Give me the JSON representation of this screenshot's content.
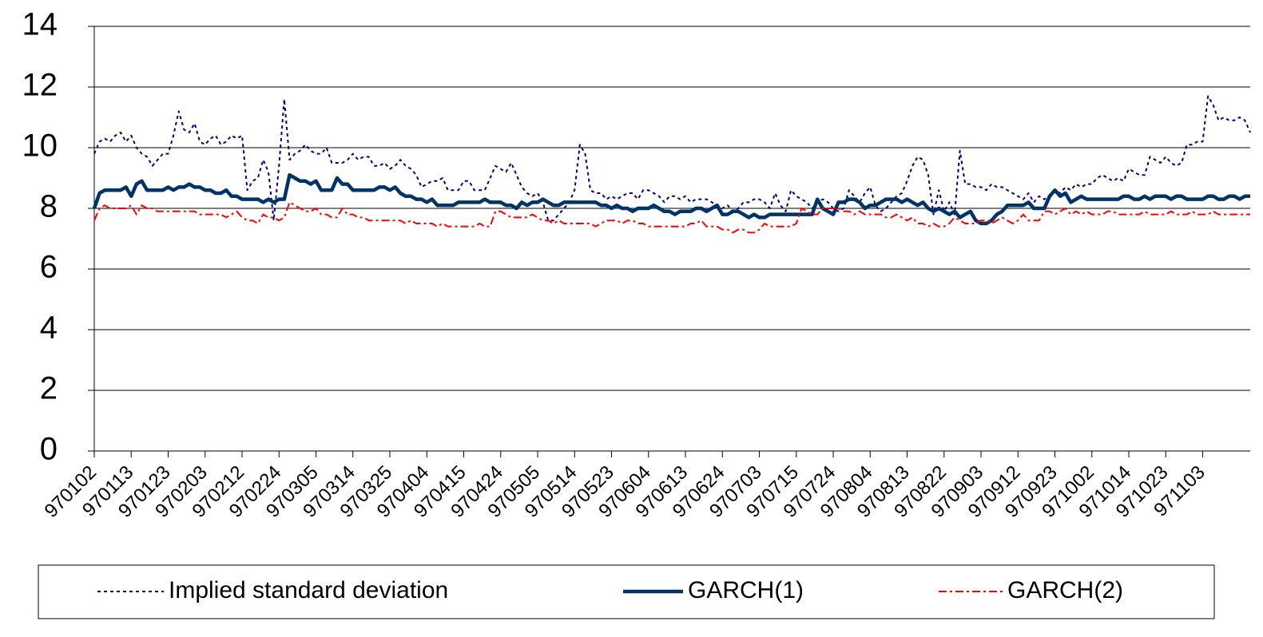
{
  "chart_data": {
    "type": "line",
    "categories": [
      "970102",
      null,
      null,
      null,
      null,
      null,
      null,
      "970113",
      null,
      null,
      null,
      null,
      null,
      null,
      "970123",
      null,
      null,
      null,
      null,
      null,
      null,
      "970203",
      null,
      null,
      null,
      null,
      null,
      null,
      "970212",
      null,
      null,
      null,
      null,
      null,
      null,
      "970224",
      null,
      null,
      null,
      null,
      null,
      null,
      "970305",
      null,
      null,
      null,
      null,
      null,
      null,
      "970314",
      null,
      null,
      null,
      null,
      null,
      null,
      "970325",
      null,
      null,
      null,
      null,
      null,
      null,
      "970404",
      null,
      null,
      null,
      null,
      null,
      null,
      "970415",
      null,
      null,
      null,
      null,
      null,
      null,
      "970424",
      null,
      null,
      null,
      null,
      null,
      null,
      "970505",
      null,
      null,
      null,
      null,
      null,
      null,
      "970514",
      null,
      null,
      null,
      null,
      null,
      null,
      "970523",
      null,
      null,
      null,
      null,
      null,
      null,
      "970604",
      null,
      null,
      null,
      null,
      null,
      null,
      "970613",
      null,
      null,
      null,
      null,
      null,
      null,
      "970624",
      null,
      null,
      null,
      null,
      null,
      null,
      "970703",
      null,
      null,
      null,
      null,
      null,
      null,
      "970715",
      null,
      null,
      null,
      null,
      null,
      null,
      "970724",
      null,
      null,
      null,
      null,
      null,
      null,
      "970804",
      null,
      null,
      null,
      null,
      null,
      null,
      "970813",
      null,
      null,
      null,
      null,
      null,
      null,
      "970822",
      null,
      null,
      null,
      null,
      null,
      null,
      "970903",
      null,
      null,
      null,
      null,
      null,
      null,
      "970912",
      null,
      null,
      null,
      null,
      null,
      null,
      "970923",
      null,
      null,
      null,
      null,
      null,
      null,
      "971002",
      null,
      null,
      null,
      null,
      null,
      null,
      "971014",
      null,
      null,
      null,
      null,
      null,
      null,
      "971023",
      null,
      null,
      null,
      null,
      null,
      null,
      "971103",
      null,
      null,
      null,
      null,
      null,
      null,
      null,
      null,
      null
    ],
    "series": [
      {
        "name": "Implied standard deviation",
        "color": "#000080",
        "dash": "dotted",
        "values": [
          9.8,
          10.2,
          10.3,
          10.2,
          10.4,
          10.5,
          10.2,
          10.4,
          10.0,
          9.8,
          9.7,
          9.4,
          9.6,
          9.8,
          9.8,
          10.4,
          11.2,
          10.6,
          10.5,
          10.8,
          10.2,
          10.1,
          10.3,
          10.4,
          10.1,
          10.2,
          10.4,
          10.3,
          10.4,
          8.6,
          8.9,
          9.0,
          9.6,
          9.2,
          7.6,
          9.4,
          11.6,
          9.6,
          9.8,
          9.9,
          10.1,
          9.9,
          9.8,
          9.8,
          10.0,
          9.5,
          9.5,
          9.5,
          9.6,
          9.8,
          9.6,
          9.7,
          9.7,
          9.4,
          9.4,
          9.5,
          9.3,
          9.4,
          9.6,
          9.4,
          9.3,
          9.1,
          8.7,
          8.8,
          8.9,
          8.9,
          9.0,
          8.6,
          8.6,
          8.6,
          8.9,
          8.9,
          8.6,
          8.6,
          8.6,
          9.0,
          9.4,
          9.3,
          9.2,
          9.5,
          9.1,
          8.7,
          8.5,
          8.4,
          8.5,
          8.2,
          7.6,
          7.6,
          7.8,
          8.0,
          8.2,
          8.6,
          10.1,
          9.8,
          8.6,
          8.5,
          8.5,
          8.3,
          8.4,
          8.3,
          8.4,
          8.5,
          8.5,
          8.3,
          8.6,
          8.6,
          8.5,
          8.4,
          8.2,
          8.4,
          8.4,
          8.3,
          8.4,
          8.2,
          8.3,
          8.3,
          8.3,
          8.2,
          8.1,
          8.0,
          8.1,
          7.9,
          8.0,
          8.2,
          8.2,
          8.3,
          8.3,
          8.2,
          8.0,
          8.5,
          8.1,
          7.9,
          8.6,
          8.4,
          8.3,
          8.2,
          8.0,
          8.2,
          8.3,
          8.2,
          8.0,
          7.9,
          8.0,
          8.6,
          8.4,
          8.2,
          8.5,
          8.7,
          8.1,
          7.9,
          8.0,
          8.2,
          8.4,
          8.5,
          8.9,
          9.4,
          9.7,
          9.6,
          9.1,
          7.8,
          8.6,
          7.9,
          8.2,
          7.8,
          9.9,
          8.8,
          8.8,
          8.7,
          8.7,
          8.6,
          8.8,
          8.7,
          8.7,
          8.6,
          8.5,
          8.4,
          8.3,
          8.5,
          8.2,
          8.4,
          8.3,
          8.4,
          8.6,
          8.5,
          8.7,
          8.6,
          8.8,
          8.7,
          8.8,
          8.8,
          9.0,
          9.1,
          9.0,
          8.9,
          9.0,
          8.9,
          9.3,
          9.2,
          9.1,
          9.1,
          9.7,
          9.6,
          9.5,
          9.7,
          9.5,
          9.4,
          9.5,
          10.1,
          10.1,
          10.2,
          10.2,
          11.7,
          11.4,
          10.9,
          11.0,
          10.9,
          10.9,
          11.0,
          10.9,
          10.5
        ]
      },
      {
        "name": "GARCH(1)",
        "color": "#003366",
        "dash": "solid",
        "values": [
          8.0,
          8.5,
          8.6,
          8.6,
          8.6,
          8.6,
          8.7,
          8.4,
          8.8,
          8.9,
          8.6,
          8.6,
          8.6,
          8.6,
          8.7,
          8.6,
          8.7,
          8.7,
          8.8,
          8.7,
          8.7,
          8.6,
          8.6,
          8.5,
          8.5,
          8.6,
          8.4,
          8.4,
          8.3,
          8.3,
          8.3,
          8.3,
          8.2,
          8.3,
          8.2,
          8.3,
          8.3,
          9.1,
          9.0,
          8.9,
          8.9,
          8.8,
          8.9,
          8.6,
          8.6,
          8.6,
          9.0,
          8.8,
          8.8,
          8.6,
          8.6,
          8.6,
          8.6,
          8.6,
          8.7,
          8.7,
          8.6,
          8.7,
          8.5,
          8.4,
          8.4,
          8.3,
          8.3,
          8.2,
          8.3,
          8.1,
          8.1,
          8.1,
          8.1,
          8.2,
          8.2,
          8.2,
          8.2,
          8.2,
          8.3,
          8.2,
          8.2,
          8.2,
          8.1,
          8.1,
          8.0,
          8.2,
          8.1,
          8.2,
          8.2,
          8.3,
          8.2,
          8.1,
          8.1,
          8.2,
          8.2,
          8.2,
          8.2,
          8.2,
          8.2,
          8.2,
          8.1,
          8.1,
          8.0,
          8.1,
          8.0,
          8.0,
          7.9,
          8.0,
          8.0,
          8.0,
          8.1,
          8.0,
          7.9,
          7.9,
          7.8,
          7.9,
          7.9,
          7.9,
          8.0,
          8.0,
          7.9,
          8.0,
          8.1,
          7.8,
          7.8,
          7.9,
          7.9,
          7.8,
          7.7,
          7.8,
          7.7,
          7.7,
          7.8,
          7.8,
          7.8,
          7.8,
          7.8,
          7.8,
          7.8,
          7.8,
          7.8,
          8.3,
          8.0,
          7.9,
          7.8,
          8.2,
          8.2,
          8.3,
          8.3,
          8.2,
          8.0,
          8.1,
          8.1,
          8.2,
          8.3,
          8.3,
          8.3,
          8.2,
          8.3,
          8.2,
          8.1,
          8.2,
          8.0,
          7.9,
          8.0,
          7.9,
          7.8,
          7.9,
          7.7,
          7.8,
          7.9,
          7.6,
          7.5,
          7.5,
          7.6,
          7.8,
          7.9,
          8.1,
          8.1,
          8.1,
          8.1,
          8.2,
          8.0,
          8.0,
          8.0,
          8.4,
          8.6,
          8.4,
          8.5,
          8.2,
          8.3,
          8.4,
          8.3,
          8.3,
          8.3,
          8.3,
          8.3,
          8.3,
          8.3,
          8.4,
          8.4,
          8.3,
          8.3,
          8.4,
          8.3,
          8.4,
          8.4,
          8.4,
          8.3,
          8.4,
          8.4,
          8.3,
          8.3,
          8.3,
          8.3,
          8.4,
          8.4,
          8.3,
          8.3,
          8.4,
          8.4,
          8.3,
          8.4,
          8.4
        ]
      },
      {
        "name": "GARCH(2)",
        "color": "#ff0000",
        "dash": "dashdot",
        "values": [
          7.6,
          8.0,
          8.1,
          8.0,
          8.0,
          8.0,
          8.0,
          8.1,
          7.8,
          8.1,
          8.0,
          8.0,
          7.9,
          7.9,
          7.9,
          7.9,
          7.9,
          7.9,
          7.9,
          7.9,
          7.8,
          7.8,
          7.8,
          7.8,
          7.8,
          7.7,
          7.8,
          7.9,
          7.7,
          7.6,
          7.6,
          7.5,
          7.8,
          7.7,
          7.7,
          7.6,
          7.7,
          8.2,
          8.1,
          8.0,
          7.9,
          7.9,
          8.0,
          7.8,
          7.8,
          7.7,
          7.7,
          8.0,
          7.8,
          7.8,
          7.7,
          7.7,
          7.6,
          7.6,
          7.6,
          7.6,
          7.6,
          7.6,
          7.6,
          7.5,
          7.6,
          7.5,
          7.5,
          7.5,
          7.5,
          7.4,
          7.5,
          7.4,
          7.4,
          7.4,
          7.4,
          7.4,
          7.4,
          7.5,
          7.4,
          7.4,
          7.9,
          7.9,
          7.8,
          7.7,
          7.7,
          7.7,
          7.7,
          7.8,
          7.7,
          7.6,
          7.6,
          7.5,
          7.6,
          7.5,
          7.5,
          7.5,
          7.5,
          7.5,
          7.5,
          7.4,
          7.5,
          7.6,
          7.6,
          7.6,
          7.5,
          7.6,
          7.6,
          7.5,
          7.5,
          7.4,
          7.4,
          7.4,
          7.4,
          7.4,
          7.4,
          7.4,
          7.4,
          7.5,
          7.5,
          7.6,
          7.4,
          7.4,
          7.4,
          7.3,
          7.3,
          7.2,
          7.3,
          7.3,
          7.2,
          7.2,
          7.3,
          7.5,
          7.4,
          7.4,
          7.4,
          7.4,
          7.4,
          7.5,
          8.0,
          7.9,
          7.8,
          7.8,
          8.0,
          8.0,
          8.0,
          8.0,
          7.9,
          7.9,
          7.8,
          7.9,
          7.8,
          7.8,
          7.8,
          7.8,
          7.7,
          7.7,
          7.8,
          7.7,
          7.6,
          7.7,
          7.5,
          7.5,
          7.4,
          7.5,
          7.4,
          7.4,
          7.5,
          7.7,
          7.6,
          7.5,
          7.5,
          7.5,
          7.6,
          7.6,
          7.5,
          7.6,
          7.7,
          7.6,
          7.5,
          7.6,
          7.8,
          7.6,
          7.6,
          7.6,
          7.9,
          7.9,
          7.8,
          7.9,
          8.0,
          7.8,
          7.9,
          7.8,
          7.9,
          7.8,
          7.8,
          7.8,
          7.9,
          7.9,
          7.8,
          7.8,
          7.8,
          7.8,
          7.8,
          7.9,
          7.8,
          7.8,
          7.8,
          7.8,
          7.9,
          7.8,
          7.8,
          7.8,
          7.9,
          7.8,
          7.8,
          7.8,
          7.9,
          7.8,
          7.8,
          7.8,
          7.8,
          7.8,
          7.8,
          7.8
        ]
      }
    ],
    "ylim": [
      0,
      14
    ],
    "yticks": [
      0,
      2,
      4,
      6,
      8,
      10,
      12,
      14
    ],
    "grid": true,
    "legend": "bottom"
  }
}
